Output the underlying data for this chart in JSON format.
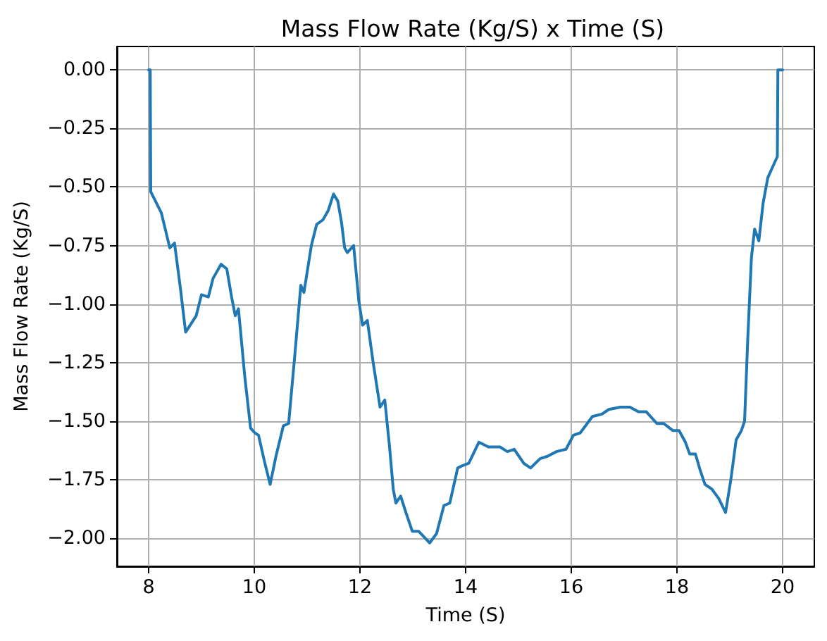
{
  "chart_data": {
    "type": "line",
    "title": "Mass Flow Rate (Kg/S) x Time (S)",
    "xlabel": "Time (S)",
    "ylabel": "Mass Flow Rate (Kg/S)",
    "x": [
      8.0,
      8.03,
      8.04,
      8.24,
      8.4,
      8.49,
      8.6,
      8.7,
      8.9,
      9.0,
      9.13,
      9.22,
      9.37,
      9.48,
      9.57,
      9.64,
      9.7,
      9.82,
      9.93,
      10.01,
      10.08,
      10.19,
      10.3,
      10.41,
      10.55,
      10.65,
      10.77,
      10.88,
      10.94,
      11.08,
      11.18,
      11.3,
      11.4,
      11.5,
      11.58,
      11.65,
      11.71,
      11.76,
      11.88,
      11.98,
      12.05,
      12.14,
      12.25,
      12.38,
      12.47,
      12.56,
      12.63,
      12.68,
      12.77,
      12.87,
      12.99,
      13.11,
      13.32,
      13.45,
      13.59,
      13.7,
      13.85,
      13.94,
      14.06,
      14.25,
      14.43,
      14.65,
      14.79,
      14.92,
      15.1,
      15.23,
      15.41,
      15.55,
      15.72,
      15.9,
      16.04,
      16.17,
      16.4,
      16.58,
      16.71,
      16.93,
      17.11,
      17.27,
      17.42,
      17.62,
      17.75,
      17.92,
      18.04,
      18.16,
      18.24,
      18.35,
      18.44,
      18.53,
      18.66,
      18.79,
      18.92,
      19.02,
      19.12,
      19.22,
      19.28,
      19.34,
      19.41,
      19.47,
      19.55,
      19.63,
      19.72,
      19.82,
      19.9,
      19.91,
      20.0
    ],
    "series": [
      {
        "color": "#1f77b4",
        "values": [
          0,
          0,
          -0.52,
          -0.61,
          -0.76,
          -0.74,
          -0.93,
          -1.12,
          -1.05,
          -0.96,
          -0.97,
          -0.89,
          -0.83,
          -0.85,
          -0.97,
          -1.05,
          -1.02,
          -1.31,
          -1.53,
          -1.55,
          -1.56,
          -1.67,
          -1.77,
          -1.65,
          -1.52,
          -1.51,
          -1.21,
          -0.92,
          -0.95,
          -0.75,
          -0.66,
          -0.64,
          -0.6,
          -0.53,
          -0.56,
          -0.65,
          -0.76,
          -0.78,
          -0.75,
          -0.99,
          -1.09,
          -1.07,
          -1.25,
          -1.44,
          -1.41,
          -1.61,
          -1.79,
          -1.85,
          -1.82,
          -1.89,
          -1.97,
          -1.97,
          -2.02,
          -1.98,
          -1.86,
          -1.85,
          -1.7,
          -1.69,
          -1.68,
          -1.59,
          -1.61,
          -1.61,
          -1.63,
          -1.62,
          -1.68,
          -1.7,
          -1.66,
          -1.65,
          -1.63,
          -1.62,
          -1.56,
          -1.55,
          -1.48,
          -1.47,
          -1.45,
          -1.44,
          -1.44,
          -1.46,
          -1.46,
          -1.51,
          -1.51,
          -1.54,
          -1.54,
          -1.59,
          -1.64,
          -1.64,
          -1.71,
          -1.77,
          -1.79,
          -1.83,
          -1.89,
          -1.75,
          -1.58,
          -1.54,
          -1.5,
          -1.15,
          -0.8,
          -0.68,
          -0.73,
          -0.57,
          -0.46,
          -0.41,
          -0.37,
          0,
          0
        ]
      }
    ],
    "xlim": [
      7.4,
      20.6
    ],
    "ylim": [
      -2.12,
      0.1
    ],
    "xticks": [
      8,
      10,
      12,
      14,
      16,
      18,
      20
    ],
    "yticks": [
      {
        "value": 0,
        "label": "0.00"
      },
      {
        "value": -0.25,
        "label": "−0.25"
      },
      {
        "value": -0.5,
        "label": "−0.50"
      },
      {
        "value": -0.75,
        "label": "−0.75"
      },
      {
        "value": -1,
        "label": "−1.00"
      },
      {
        "value": -1.25,
        "label": "−1.25"
      },
      {
        "value": -1.5,
        "label": "−1.50"
      },
      {
        "value": -1.75,
        "label": "−1.75"
      },
      {
        "value": -2,
        "label": "−2.00"
      }
    ],
    "grid": true,
    "marker": "none",
    "line_style": "solid"
  }
}
